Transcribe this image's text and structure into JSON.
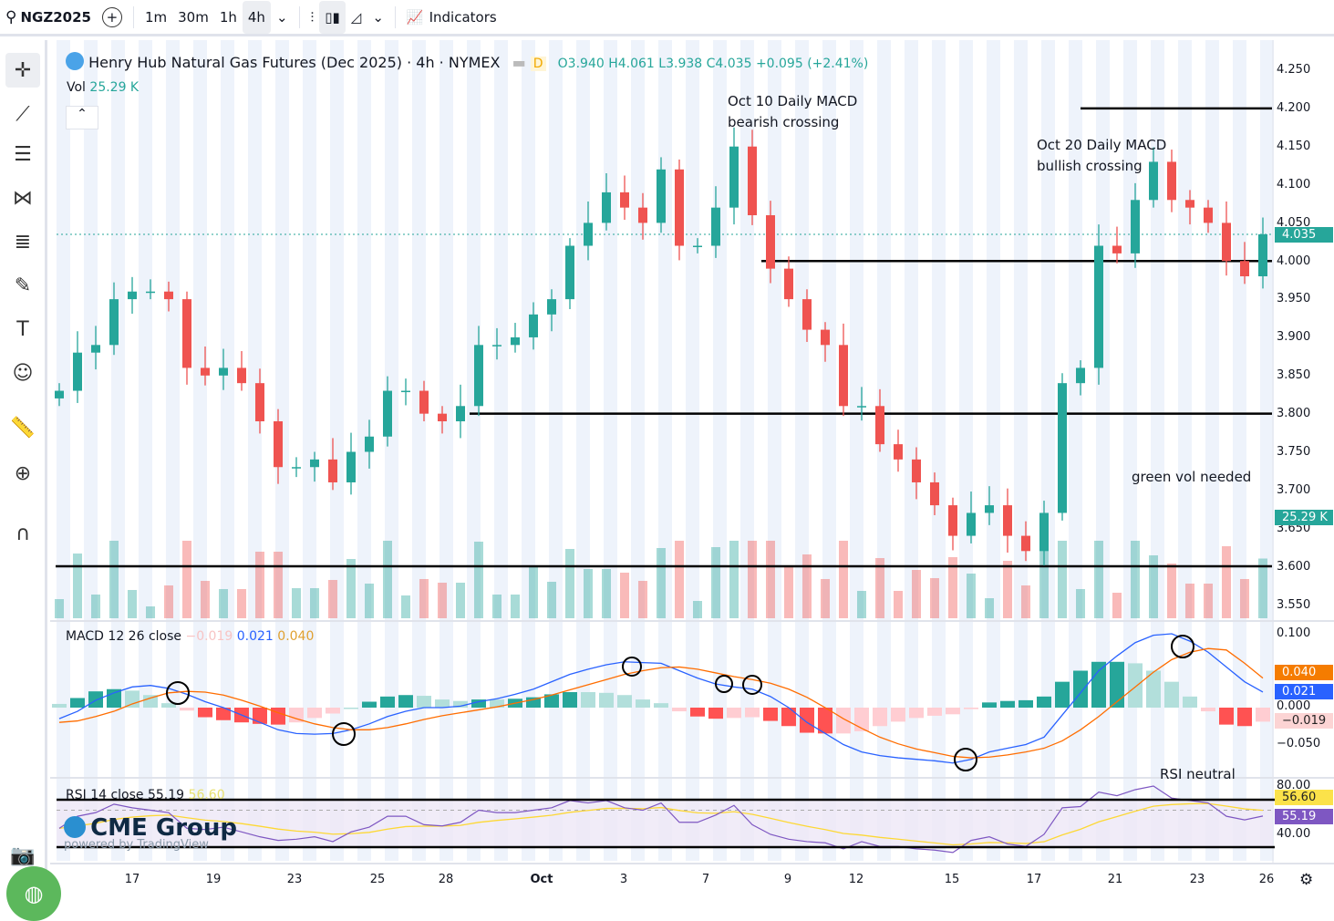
{
  "toolbar": {
    "symbol": "NGZ2025",
    "intervals": [
      "1m",
      "30m",
      "1h",
      "4h"
    ],
    "active_interval": "4h",
    "indicators_label": "Indicators"
  },
  "legend": {
    "title": "Henry Hub Natural Gas Futures (Dec 2025) · 4h · NYMEX",
    "badge": "D",
    "open": "O3.940",
    "high": "H4.061",
    "low": "L3.938",
    "close": "C4.035",
    "change": "+0.095 (+2.41%)",
    "vol_label": "Vol",
    "vol_value": "25.29 K"
  },
  "macd_legend": {
    "label": "MACD 12 26 close",
    "hist": "−0.019",
    "macd": "0.021",
    "signal": "0.040"
  },
  "rsi_legend": {
    "label": "RSI 14 close",
    "rsi": "55.19",
    "ma": "56.60"
  },
  "annotations": {
    "oct10": [
      "Oct 10 Daily MACD",
      "bearish crossing"
    ],
    "oct20": [
      "Oct 20 Daily MACD",
      "bullish crossing"
    ],
    "vol": "green vol needed",
    "rsi": "RSI neutral"
  },
  "watermark": {
    "brand": "CME Group",
    "powered": "powered by TradingView"
  },
  "price_axis": [
    "4.250",
    "4.200",
    "4.150",
    "4.100",
    "4.050",
    "4.000",
    "3.950",
    "3.900",
    "3.850",
    "3.800",
    "3.750",
    "3.700",
    "3.650",
    "3.600",
    "3.550"
  ],
  "price_tag": "4.035",
  "vol_tag": "25.29 K",
  "macd_axis": [
    "0.100",
    "0.000",
    "−0.050"
  ],
  "macd_tags": {
    "signal": "0.040",
    "macd": "0.021",
    "hist": "−0.019"
  },
  "rsi_axis": [
    "80.00",
    "40.00"
  ],
  "rsi_tags": {
    "ma": "56.60",
    "rsi": "55.19"
  },
  "dates": [
    "17",
    "19",
    "23",
    "25",
    "28",
    "Oct",
    "3",
    "7",
    "9",
    "12",
    "15",
    "17",
    "21",
    "23",
    "26"
  ],
  "colors": {
    "up": "#26a69a",
    "down": "#ef5350",
    "macd": "#2962ff",
    "signal": "#ff6d00",
    "rsi": "#7e57c2",
    "rsi_ma": "#fdd835"
  },
  "chart_data": {
    "type": "candlestick",
    "title": "Henry Hub Natural Gas Futures (Dec 2025) · 4h · NYMEX",
    "ylim": [
      3.55,
      4.25
    ],
    "closes": [
      3.83,
      3.88,
      3.89,
      3.95,
      3.96,
      3.96,
      3.95,
      3.86,
      3.85,
      3.86,
      3.84,
      3.79,
      3.73,
      3.73,
      3.74,
      3.71,
      3.75,
      3.77,
      3.83,
      3.83,
      3.8,
      3.79,
      3.81,
      3.89,
      3.89,
      3.9,
      3.93,
      3.95,
      4.02,
      4.05,
      4.09,
      4.07,
      4.05,
      4.12,
      4.02,
      4.02,
      4.07,
      4.15,
      4.06,
      3.99,
      3.95,
      3.91,
      3.89,
      3.81,
      3.81,
      3.76,
      3.74,
      3.71,
      3.68,
      3.64,
      3.67,
      3.68,
      3.64,
      3.62,
      3.67,
      3.84,
      3.86,
      4.02,
      4.01,
      4.08,
      4.13,
      4.08,
      4.07,
      4.05,
      4.0,
      3.98,
      4.035
    ],
    "levels": [
      {
        "price": 4.2,
        "from": 56
      },
      {
        "price": 4.0,
        "from": 38.5
      },
      {
        "price": 3.8,
        "from": 22.5
      },
      {
        "price": 3.6,
        "from": -0.2
      }
    ],
    "macd": [
      -0.015,
      -0.005,
      0.01,
      0.02,
      0.028,
      0.03,
      0.026,
      0.018,
      0.008,
      0.0,
      -0.01,
      -0.02,
      -0.03,
      -0.035,
      -0.036,
      -0.035,
      -0.03,
      -0.022,
      -0.012,
      -0.005,
      0.0,
      0.0,
      0.002,
      0.008,
      0.012,
      0.018,
      0.025,
      0.035,
      0.045,
      0.052,
      0.058,
      0.062,
      0.061,
      0.06,
      0.05,
      0.04,
      0.032,
      0.028,
      0.025,
      0.015,
      0.0,
      -0.02,
      -0.035,
      -0.05,
      -0.06,
      -0.065,
      -0.068,
      -0.07,
      -0.072,
      -0.075,
      -0.07,
      -0.06,
      -0.055,
      -0.05,
      -0.04,
      -0.01,
      0.02,
      0.05,
      0.07,
      0.088,
      0.098,
      0.1,
      0.09,
      0.075,
      0.055,
      0.035,
      0.021
    ],
    "signal": [
      -0.02,
      -0.018,
      -0.012,
      -0.005,
      0.005,
      0.013,
      0.02,
      0.022,
      0.021,
      0.017,
      0.01,
      0.002,
      -0.007,
      -0.015,
      -0.022,
      -0.027,
      -0.03,
      -0.03,
      -0.027,
      -0.022,
      -0.016,
      -0.011,
      -0.007,
      -0.003,
      0.001,
      0.006,
      0.011,
      0.017,
      0.024,
      0.031,
      0.038,
      0.045,
      0.05,
      0.054,
      0.055,
      0.052,
      0.047,
      0.042,
      0.038,
      0.033,
      0.025,
      0.014,
      0.0,
      -0.015,
      -0.028,
      -0.04,
      -0.049,
      -0.056,
      -0.061,
      -0.066,
      -0.068,
      -0.067,
      -0.064,
      -0.06,
      -0.055,
      -0.045,
      -0.03,
      -0.012,
      0.008,
      0.028,
      0.048,
      0.065,
      0.075,
      0.08,
      0.078,
      0.06,
      0.04
    ],
    "rsi": [
      45,
      55,
      58,
      65,
      62,
      60,
      58,
      45,
      44,
      46,
      42,
      38,
      35,
      36,
      38,
      34,
      42,
      46,
      55,
      55,
      48,
      47,
      50,
      60,
      58,
      58,
      60,
      62,
      68,
      66,
      68,
      62,
      60,
      66,
      50,
      50,
      56,
      64,
      48,
      40,
      36,
      34,
      33,
      28,
      34,
      30,
      30,
      28,
      27,
      25,
      35,
      38,
      32,
      30,
      40,
      62,
      63,
      75,
      72,
      77,
      80,
      70,
      68,
      66,
      55,
      52,
      55.19
    ],
    "rsi_ylim": [
      40,
      80
    ]
  }
}
